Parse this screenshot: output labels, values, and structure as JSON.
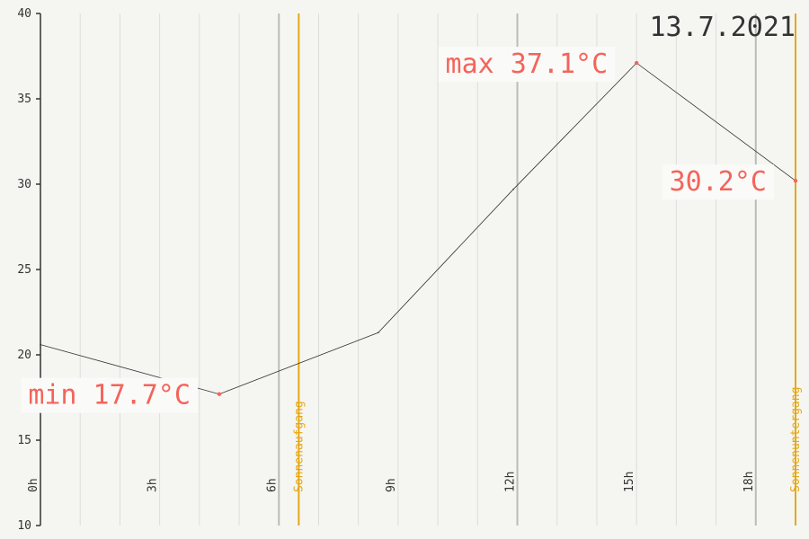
{
  "chart_data": {
    "type": "line",
    "title": "13.7.2021",
    "ylim": [
      10,
      40
    ],
    "xlim": [
      0,
      19
    ],
    "y_ticks": [
      10,
      15,
      20,
      25,
      30,
      35,
      40
    ],
    "x_ticks": [
      0,
      3,
      6,
      9,
      12,
      15,
      18
    ],
    "x_tick_labels": [
      "0h",
      "3h",
      "6h",
      "9h",
      "12h",
      "15h",
      "18h"
    ],
    "series": [
      {
        "x": [
          0,
          4.5,
          8.5,
          11.9,
          15,
          19
        ],
        "values": [
          20.6,
          17.7,
          21.3,
          29.7,
          37.1,
          30.2
        ]
      }
    ],
    "sunrise": {
      "x": 6.5,
      "label": "Sonnenaufgang"
    },
    "sunset": {
      "x": 19,
      "label": "Sonnenuntergang"
    },
    "annotations": [
      {
        "label": "min 17.7°C",
        "x": 4.5,
        "y": 17.7,
        "side": "left"
      },
      {
        "label": "max 37.1°C",
        "x": 15,
        "y": 37.1,
        "side": "left"
      },
      {
        "label": "30.2°C",
        "x": 19,
        "y": 30.2,
        "side": "left"
      }
    ],
    "grid": true,
    "colors": {
      "line": "#333333",
      "accent": "#f4645a",
      "sun": "#e6a817",
      "grid": "#dddddd",
      "major_grid": "#bbbbbb"
    }
  }
}
